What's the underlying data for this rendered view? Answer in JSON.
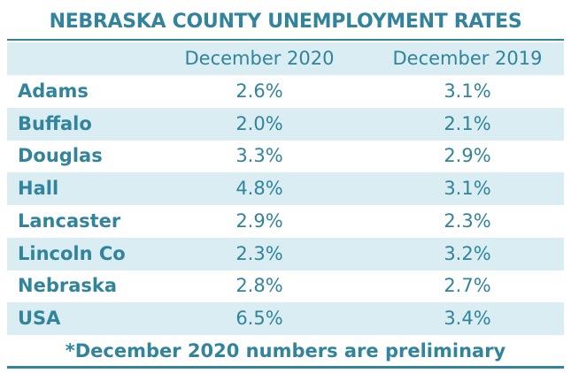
{
  "title": "NEBRASKA COUNTY UNEMPLOYMENT RATES",
  "table": {
    "columns": [
      "December 2020",
      "December 2019"
    ],
    "rows": [
      [
        "Adams",
        "2.6%",
        "3.1%"
      ],
      [
        "Buffalo",
        "2.0%",
        "2.1%"
      ],
      [
        "Douglas",
        "3.3%",
        "2.9%"
      ],
      [
        "Hall",
        "4.8%",
        "3.1%"
      ],
      [
        "Lancaster",
        "2.9%",
        "2.3%"
      ],
      [
        "Lincoln Co",
        "2.3%",
        "3.2%"
      ],
      [
        "Nebraska",
        "2.8%",
        "2.7%"
      ],
      [
        "USA",
        "6.5%",
        "3.4%"
      ]
    ]
  },
  "footnote": "*December 2020 numbers are preliminary"
}
